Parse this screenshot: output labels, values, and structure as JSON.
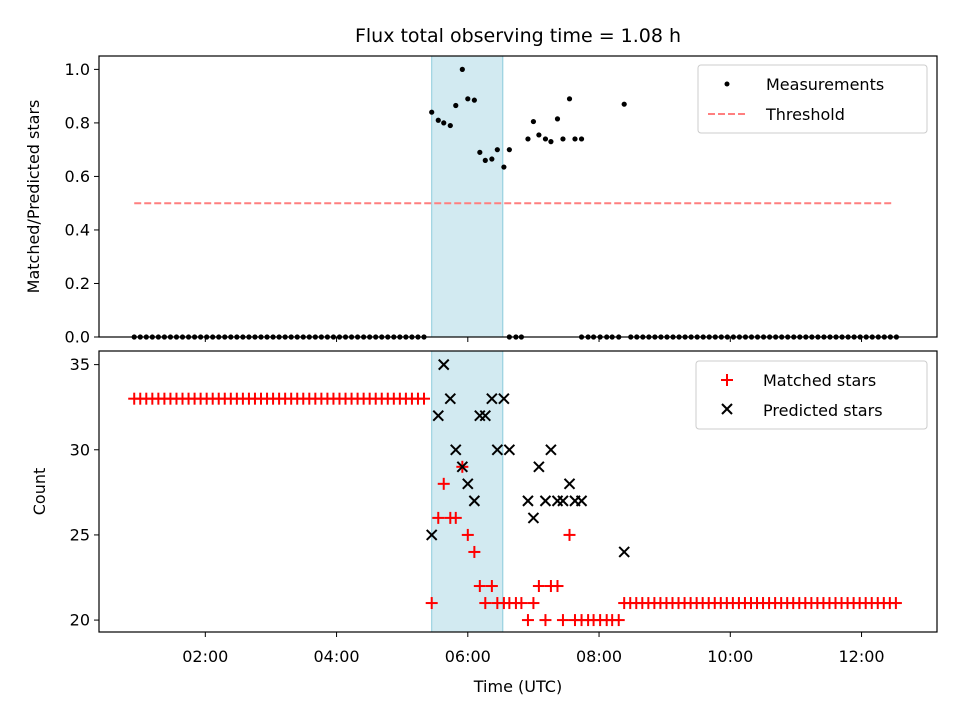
{
  "chart_data": {
    "type": "scatter",
    "title": "Flux total observing time = 1.08 h",
    "xlabel": "Time (UTC)",
    "x_ticks": [
      "02:00",
      "04:00",
      "06:00",
      "08:00",
      "10:00",
      "12:00"
    ],
    "highlight_span": [
      "05:27",
      "06:32"
    ],
    "top_panel": {
      "ylabel": "Matched/Predicted stars",
      "ylim": [
        0,
        1.05
      ],
      "y_ticks": [
        "0.0",
        "0.2",
        "0.4",
        "0.6",
        "0.8",
        "1.0"
      ],
      "threshold": {
        "name": "Threshold",
        "value": 0.5,
        "x_range": [
          "00:55",
          "12:28"
        ],
        "color": "#ff7f7f"
      },
      "legend": [
        "Measurements",
        "Threshold"
      ],
      "zero_point_times": {
        "start": "00:55",
        "end": "05:22",
        "step_min": 5.52,
        "extra": [
          "06:38",
          "06:44",
          "06:49",
          "07:44",
          "07:50",
          "07:55",
          "08:01",
          "08:07",
          "08:12",
          "08:18"
        ],
        "late_start": "08:29",
        "late_end": "12:32"
      },
      "measurements": [
        {
          "t": "05:27",
          "v": 0.84
        },
        {
          "t": "05:33",
          "v": 0.81
        },
        {
          "t": "05:38",
          "v": 0.8
        },
        {
          "t": "05:44",
          "v": 0.79
        },
        {
          "t": "05:49",
          "v": 0.865
        },
        {
          "t": "05:55",
          "v": 1.0
        },
        {
          "t": "06:00",
          "v": 0.89
        },
        {
          "t": "06:06",
          "v": 0.885
        },
        {
          "t": "06:11",
          "v": 0.69
        },
        {
          "t": "06:16",
          "v": 0.66
        },
        {
          "t": "06:22",
          "v": 0.665
        },
        {
          "t": "06:27",
          "v": 0.7
        },
        {
          "t": "06:33",
          "v": 0.635
        },
        {
          "t": "06:38",
          "v": 0.7
        },
        {
          "t": "06:55",
          "v": 0.74
        },
        {
          "t": "07:00",
          "v": 0.805
        },
        {
          "t": "07:05",
          "v": 0.755
        },
        {
          "t": "07:11",
          "v": 0.74
        },
        {
          "t": "07:16",
          "v": 0.73
        },
        {
          "t": "07:22",
          "v": 0.815
        },
        {
          "t": "07:27",
          "v": 0.74
        },
        {
          "t": "07:33",
          "v": 0.89
        },
        {
          "t": "07:38",
          "v": 0.74
        },
        {
          "t": "07:44",
          "v": 0.74
        },
        {
          "t": "08:23",
          "v": 0.87
        }
      ]
    },
    "bottom_panel": {
      "ylabel": "Count",
      "ylim": [
        19.3,
        35.8
      ],
      "y_ticks": [
        "20",
        "25",
        "30",
        "35"
      ],
      "legend": [
        "Matched stars",
        "Predicted stars"
      ],
      "matched_constant_early": {
        "value": 33,
        "start": "00:55",
        "end": "05:22"
      },
      "matched_constant_late": {
        "value": 21,
        "start": "08:23",
        "end": "12:32"
      },
      "matched": [
        {
          "t": "05:27",
          "v": 21
        },
        {
          "t": "05:33",
          "v": 26
        },
        {
          "t": "05:38",
          "v": 28
        },
        {
          "t": "05:44",
          "v": 26
        },
        {
          "t": "05:49",
          "v": 26
        },
        {
          "t": "05:55",
          "v": 29
        },
        {
          "t": "06:00",
          "v": 25
        },
        {
          "t": "06:06",
          "v": 24
        },
        {
          "t": "06:11",
          "v": 22
        },
        {
          "t": "06:16",
          "v": 21
        },
        {
          "t": "06:22",
          "v": 22
        },
        {
          "t": "06:27",
          "v": 21
        },
        {
          "t": "06:33",
          "v": 21
        },
        {
          "t": "06:38",
          "v": 21
        },
        {
          "t": "06:44",
          "v": 21
        },
        {
          "t": "06:49",
          "v": 21
        },
        {
          "t": "06:55",
          "v": 20
        },
        {
          "t": "07:00",
          "v": 21
        },
        {
          "t": "07:05",
          "v": 22
        },
        {
          "t": "07:11",
          "v": 20
        },
        {
          "t": "07:16",
          "v": 22
        },
        {
          "t": "07:22",
          "v": 22
        },
        {
          "t": "07:27",
          "v": 20
        },
        {
          "t": "07:33",
          "v": 25
        },
        {
          "t": "07:38",
          "v": 20
        },
        {
          "t": "07:44",
          "v": 20
        },
        {
          "t": "07:50",
          "v": 20
        },
        {
          "t": "07:55",
          "v": 20
        },
        {
          "t": "08:01",
          "v": 20
        },
        {
          "t": "08:07",
          "v": 20
        },
        {
          "t": "08:12",
          "v": 20
        },
        {
          "t": "08:18",
          "v": 20
        }
      ],
      "predicted": [
        {
          "t": "05:27",
          "v": 25
        },
        {
          "t": "05:33",
          "v": 32
        },
        {
          "t": "05:38",
          "v": 35
        },
        {
          "t": "05:44",
          "v": 33
        },
        {
          "t": "05:49",
          "v": 30
        },
        {
          "t": "05:55",
          "v": 29
        },
        {
          "t": "06:00",
          "v": 28
        },
        {
          "t": "06:06",
          "v": 27
        },
        {
          "t": "06:11",
          "v": 32
        },
        {
          "t": "06:16",
          "v": 32
        },
        {
          "t": "06:22",
          "v": 33
        },
        {
          "t": "06:27",
          "v": 30
        },
        {
          "t": "06:33",
          "v": 33
        },
        {
          "t": "06:38",
          "v": 30
        },
        {
          "t": "06:55",
          "v": 27
        },
        {
          "t": "07:00",
          "v": 26
        },
        {
          "t": "07:05",
          "v": 29
        },
        {
          "t": "07:11",
          "v": 27
        },
        {
          "t": "07:16",
          "v": 30
        },
        {
          "t": "07:22",
          "v": 27
        },
        {
          "t": "07:27",
          "v": 27
        },
        {
          "t": "07:33",
          "v": 28
        },
        {
          "t": "07:38",
          "v": 27
        },
        {
          "t": "07:44",
          "v": 27
        },
        {
          "t": "08:23",
          "v": 24
        }
      ]
    },
    "colors": {
      "matched": "#ff0000",
      "predicted": "#000000",
      "measurements": "#000000",
      "span": "#add8e6"
    }
  }
}
